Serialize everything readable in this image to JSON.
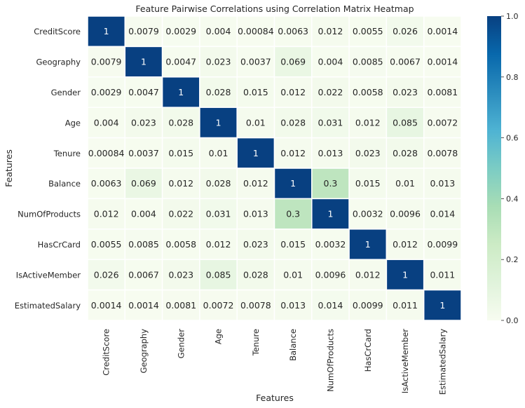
{
  "chart_data": {
    "type": "heatmap",
    "title": "Feature Pairwise Correlations using Correlation Matrix Heatmap",
    "xlabel": "Features",
    "ylabel": "Features",
    "features": [
      "CreditScore",
      "Geography",
      "Gender",
      "Age",
      "Tenure",
      "Balance",
      "NumOfProducts",
      "HasCrCard",
      "IsActiveMember",
      "EstimatedSalary"
    ],
    "values": [
      [
        1,
        0.0079,
        0.0029,
        0.004,
        0.00084,
        0.0063,
        0.012,
        0.0055,
        0.026,
        0.0014
      ],
      [
        0.0079,
        1,
        0.0047,
        0.023,
        0.0037,
        0.069,
        0.004,
        0.0085,
        0.0067,
        0.0014
      ],
      [
        0.0029,
        0.0047,
        1,
        0.028,
        0.015,
        0.012,
        0.022,
        0.0058,
        0.023,
        0.0081
      ],
      [
        0.004,
        0.023,
        0.028,
        1,
        0.01,
        0.028,
        0.031,
        0.012,
        0.085,
        0.0072
      ],
      [
        0.00084,
        0.0037,
        0.015,
        0.01,
        1,
        0.012,
        0.013,
        0.023,
        0.028,
        0.0078
      ],
      [
        0.0063,
        0.069,
        0.012,
        0.028,
        0.012,
        1,
        0.3,
        0.015,
        0.01,
        0.013
      ],
      [
        0.012,
        0.004,
        0.022,
        0.031,
        0.013,
        0.3,
        1,
        0.0032,
        0.0096,
        0.014
      ],
      [
        0.0055,
        0.0085,
        0.0058,
        0.012,
        0.023,
        0.015,
        0.0032,
        1,
        0.012,
        0.0099
      ],
      [
        0.026,
        0.0067,
        0.023,
        0.085,
        0.028,
        0.01,
        0.0096,
        0.012,
        1,
        0.011
      ],
      [
        0.0014,
        0.0014,
        0.0081,
        0.0072,
        0.0078,
        0.013,
        0.014,
        0.0099,
        0.011,
        1
      ]
    ],
    "labels": [
      [
        "1",
        "0.0079",
        "0.0029",
        "0.004",
        "0.00084",
        "0.0063",
        "0.012",
        "0.0055",
        "0.026",
        "0.0014"
      ],
      [
        "0.0079",
        "1",
        "0.0047",
        "0.023",
        "0.0037",
        "0.069",
        "0.004",
        "0.0085",
        "0.0067",
        "0.0014"
      ],
      [
        "0.0029",
        "0.0047",
        "1",
        "0.028",
        "0.015",
        "0.012",
        "0.022",
        "0.0058",
        "0.023",
        "0.0081"
      ],
      [
        "0.004",
        "0.023",
        "0.028",
        "1",
        "0.01",
        "0.028",
        "0.031",
        "0.012",
        "0.085",
        "0.0072"
      ],
      [
        "0.00084",
        "0.0037",
        "0.015",
        "0.01",
        "1",
        "0.012",
        "0.013",
        "0.023",
        "0.028",
        "0.0078"
      ],
      [
        "0.0063",
        "0.069",
        "0.012",
        "0.028",
        "0.012",
        "1",
        "0.3",
        "0.015",
        "0.01",
        "0.013"
      ],
      [
        "0.012",
        "0.004",
        "0.022",
        "0.031",
        "0.013",
        "0.3",
        "1",
        "0.0032",
        "0.0096",
        "0.014"
      ],
      [
        "0.0055",
        "0.0085",
        "0.0058",
        "0.012",
        "0.023",
        "0.015",
        "0.0032",
        "1",
        "0.012",
        "0.0099"
      ],
      [
        "0.026",
        "0.0067",
        "0.023",
        "0.085",
        "0.028",
        "0.01",
        "0.0096",
        "0.012",
        "1",
        "0.011"
      ],
      [
        "0.0014",
        "0.0014",
        "0.0081",
        "0.0072",
        "0.0078",
        "0.013",
        "0.014",
        "0.0099",
        "0.011",
        "1"
      ]
    ],
    "colorbar": {
      "range": [
        0,
        1
      ],
      "ticks": [
        "0.0",
        "0.2",
        "0.4",
        "0.6",
        "0.8",
        "1.0"
      ],
      "tick_values": [
        0,
        0.2,
        0.4,
        0.6,
        0.8,
        1.0
      ]
    },
    "colormap": {
      "name": "GnBu",
      "stops": [
        "#f7fcf0",
        "#e0f3db",
        "#ccebc5",
        "#a8ddb5",
        "#7bccc4",
        "#4eb3d3",
        "#2b8cbe",
        "#0868ac",
        "#084081"
      ]
    },
    "grid": false,
    "cell_border_color": "#ffffff"
  }
}
